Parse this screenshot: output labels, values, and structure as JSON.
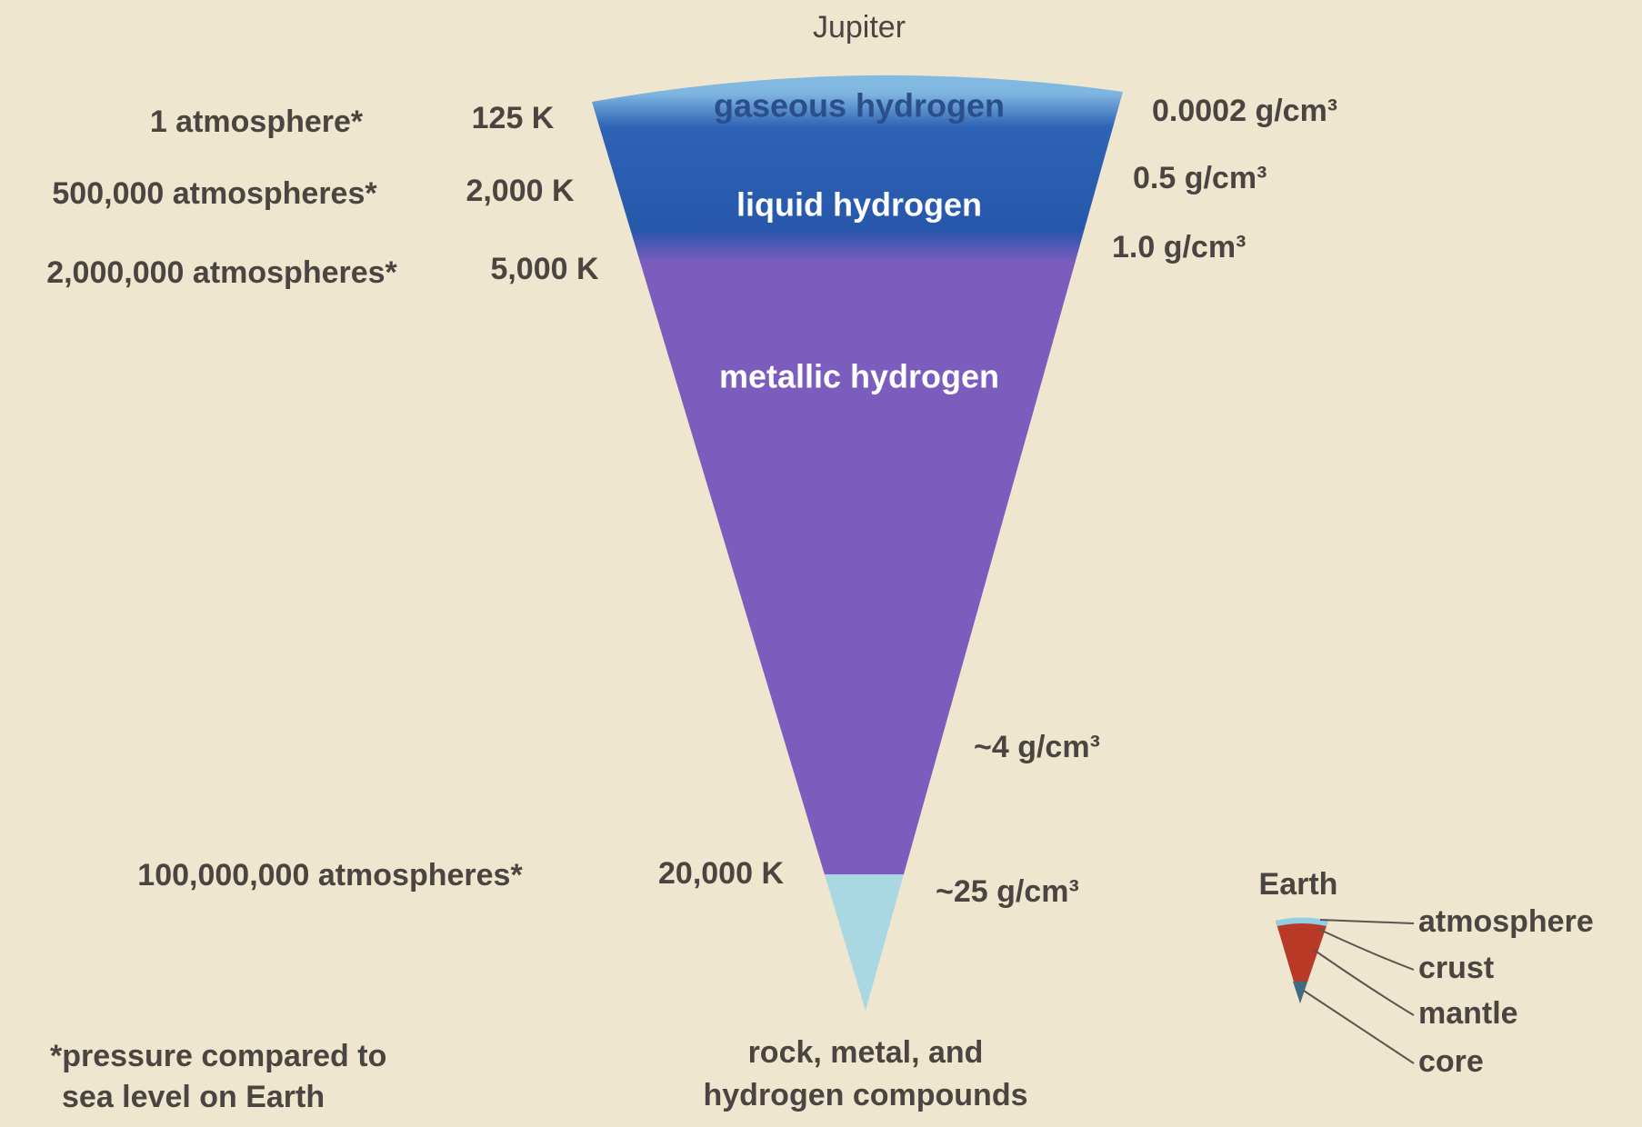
{
  "title": "Jupiter",
  "layers": [
    "gaseous hydrogen",
    "liquid hydrogen",
    "metallic hydrogen"
  ],
  "core_label": [
    "rock, metal, and",
    "hydrogen compounds"
  ],
  "pressures": [
    "1 atmosphere*",
    "500,000 atmospheres*",
    "2,000,000 atmospheres*",
    "100,000,000 atmospheres*"
  ],
  "temperatures": [
    "125 K",
    "2,000 K",
    "5,000 K",
    "20,000 K"
  ],
  "densities": [
    "0.0002 g/cm³",
    "0.5 g/cm³",
    "1.0 g/cm³",
    "~4 g/cm³",
    "~25 g/cm³"
  ],
  "footnote": [
    "*pressure compared to",
    "sea level on Earth"
  ],
  "earth": {
    "title": "Earth",
    "layers": [
      "atmosphere",
      "crust",
      "mantle",
      "core"
    ]
  }
}
